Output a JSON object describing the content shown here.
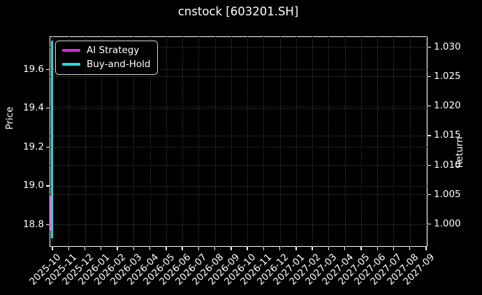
{
  "chart_data": {
    "type": "line",
    "title": "cnstock [603201.SH]",
    "ylabel_left": "Price",
    "ylabel_right": "Return",
    "background_color": "#000000",
    "text_color": "#ffffff",
    "grid": true,
    "grid_style": "dotted",
    "legend_position": "upper-left",
    "x_tick_labels": [
      "2025-10",
      "2025-11",
      "2025-12",
      "2026-01",
      "2026-02",
      "2026-03",
      "2026-04",
      "2026-05",
      "2026-06",
      "2026-07",
      "2026-08",
      "2026-09",
      "2026-10",
      "2026-11",
      "2026-12",
      "2027-01",
      "2027-02",
      "2027-03",
      "2027-04",
      "2027-05",
      "2027-06",
      "2027-07",
      "2027-08",
      "2027-09"
    ],
    "y_ticks_price": [
      19.6,
      19.4,
      19.2,
      19.0,
      18.8
    ],
    "y_ticks_return": [
      1.03,
      1.025,
      1.02,
      1.015,
      1.01,
      1.005,
      1.0
    ],
    "ylim_price": [
      18.69,
      19.77
    ],
    "ylim_return": [
      0.9963,
      1.0318
    ],
    "series": [
      {
        "name": "AI Strategy",
        "color": "#d62bd6",
        "x": "2025-10",
        "price_high": 18.95,
        "price_low": 18.77,
        "return_high": 1.0049,
        "return_low": 0.9989
      },
      {
        "name": "Buy-and-Hold",
        "color": "#2ad8d8",
        "x": "2025-10",
        "price_high": 19.75,
        "price_low": 18.73,
        "return_high": 1.0315,
        "return_low": 0.9975
      }
    ]
  }
}
